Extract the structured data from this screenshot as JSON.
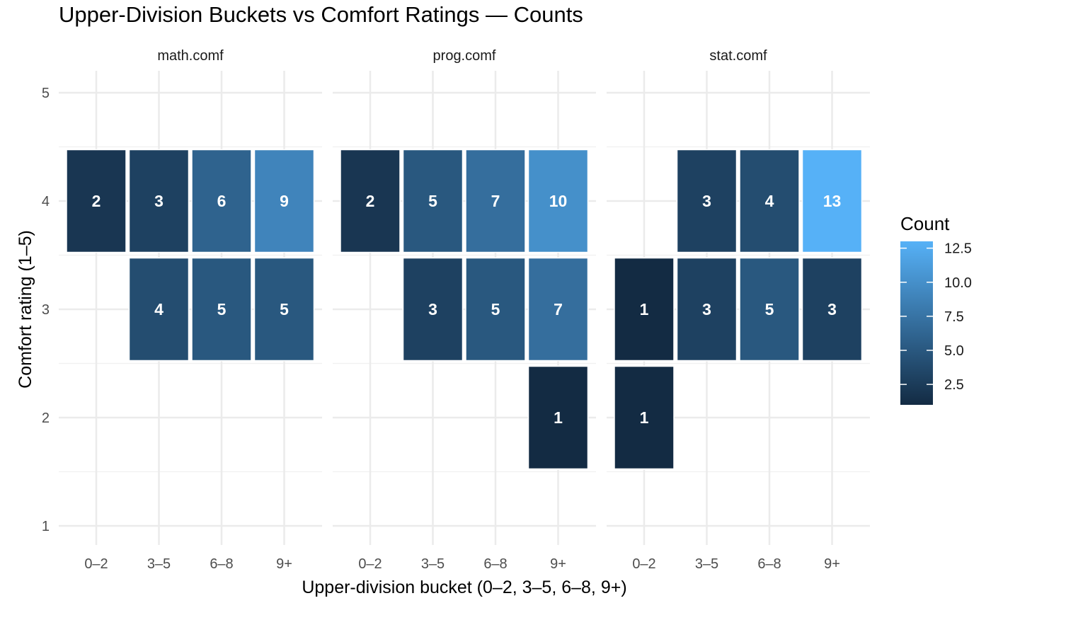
{
  "chart_data": {
    "type": "heatmap",
    "title": "Upper-Division Buckets vs Comfort Ratings — Counts",
    "xlabel": "Upper-division bucket (0–2, 3–5, 6–8, 9+)",
    "ylabel": "Comfort rating (1–5)",
    "x_categories": [
      "0–2",
      "3–5",
      "6–8",
      "9+"
    ],
    "y_ticks": [
      "1",
      "2",
      "3",
      "4",
      "5"
    ],
    "ylim": [
      0.5,
      5.2
    ],
    "facets": [
      {
        "name": "math.comf",
        "cells": [
          {
            "x": "0–2",
            "y": 4,
            "count": 2
          },
          {
            "x": "3–5",
            "y": 4,
            "count": 3
          },
          {
            "x": "6–8",
            "y": 4,
            "count": 6
          },
          {
            "x": "9+",
            "y": 4,
            "count": 9
          },
          {
            "x": "3–5",
            "y": 3,
            "count": 4
          },
          {
            "x": "6–8",
            "y": 3,
            "count": 5
          },
          {
            "x": "9+",
            "y": 3,
            "count": 5
          }
        ]
      },
      {
        "name": "prog.comf",
        "cells": [
          {
            "x": "0–2",
            "y": 4,
            "count": 2
          },
          {
            "x": "3–5",
            "y": 4,
            "count": 5
          },
          {
            "x": "6–8",
            "y": 4,
            "count": 7
          },
          {
            "x": "9+",
            "y": 4,
            "count": 10
          },
          {
            "x": "3–5",
            "y": 3,
            "count": 3
          },
          {
            "x": "6–8",
            "y": 3,
            "count": 5
          },
          {
            "x": "9+",
            "y": 3,
            "count": 7
          },
          {
            "x": "9+",
            "y": 2,
            "count": 1
          }
        ]
      },
      {
        "name": "stat.comf",
        "cells": [
          {
            "x": "3–5",
            "y": 4,
            "count": 3
          },
          {
            "x": "6–8",
            "y": 4,
            "count": 4
          },
          {
            "x": "9+",
            "y": 4,
            "count": 13
          },
          {
            "x": "0–2",
            "y": 3,
            "count": 1
          },
          {
            "x": "3–5",
            "y": 3,
            "count": 3
          },
          {
            "x": "6–8",
            "y": 3,
            "count": 5
          },
          {
            "x": "9+",
            "y": 3,
            "count": 3
          },
          {
            "x": "0–2",
            "y": 2,
            "count": 1
          }
        ]
      }
    ],
    "legend": {
      "title": "Count",
      "ticks": [
        2.5,
        5.0,
        7.5,
        10.0,
        12.5
      ],
      "tick_labels": [
        "2.5",
        "5.0",
        "7.5",
        "10.0",
        "12.5"
      ],
      "min": 1,
      "max": 13,
      "low_color": "#132B43",
      "high_color": "#56B1F7",
      "placement": "right"
    },
    "grid": true
  }
}
